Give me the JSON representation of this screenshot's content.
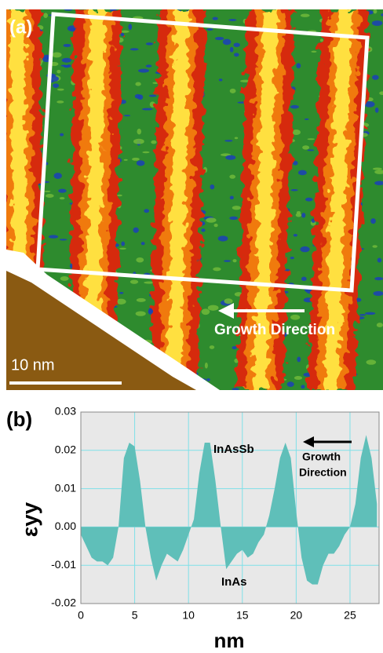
{
  "panel_a": {
    "label": "(a)",
    "annotation": "Growth Direction",
    "scale_bar": "10 nm"
  },
  "chart_data": {
    "type": "area",
    "panel_label": "(b)",
    "xlabel": "nm",
    "ylabel": "εyy",
    "annotations": [
      "InAsSb",
      "InAs",
      "Growth",
      "Direction"
    ],
    "color": "#5fbfb9",
    "grid": true,
    "xlim": [
      0,
      27.7
    ],
    "xticks": [
      0,
      5,
      10,
      15,
      20,
      25
    ],
    "ylim": [
      -0.02,
      0.03
    ],
    "yticks": [
      -0.02,
      -0.01,
      {
        "value": 0,
        "label": "0.00"
      },
      0.01,
      0.02,
      0.03
    ],
    "x": [
      0,
      0.5,
      1,
      1.5,
      2,
      2.5,
      3,
      3.5,
      4,
      4.5,
      5,
      5.5,
      6,
      6.5,
      7,
      7.5,
      8,
      8.5,
      9,
      9.5,
      10,
      10.5,
      11,
      11.5,
      12,
      12.5,
      13,
      13.5,
      14,
      14.5,
      15,
      15.5,
      16,
      16.5,
      17,
      17.5,
      18,
      18.5,
      19,
      19.5,
      20,
      20.5,
      21,
      21.5,
      22,
      22.5,
      23,
      23.5,
      24,
      24.5,
      25,
      25.5,
      26,
      26.5,
      27,
      27.5
    ],
    "values": [
      -0.002,
      -0.005,
      -0.008,
      -0.009,
      -0.009,
      -0.01,
      -0.008,
      0.0,
      0.018,
      0.022,
      0.021,
      0.012,
      0.0,
      -0.008,
      -0.014,
      -0.01,
      -0.007,
      -0.008,
      -0.009,
      -0.006,
      -0.002,
      0.002,
      0.014,
      0.022,
      0.022,
      0.012,
      0.0,
      -0.011,
      -0.009,
      -0.007,
      -0.006,
      -0.008,
      -0.007,
      -0.004,
      -0.002,
      0.003,
      0.01,
      0.018,
      0.022,
      0.018,
      0.004,
      -0.008,
      -0.014,
      -0.015,
      -0.015,
      -0.01,
      -0.007,
      -0.007,
      -0.005,
      -0.002,
      0.0,
      0.006,
      0.018,
      0.024,
      0.018,
      0.006
    ]
  }
}
